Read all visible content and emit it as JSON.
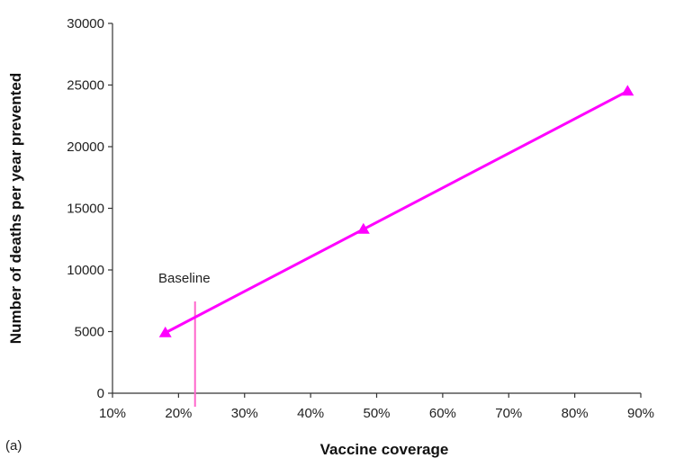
{
  "chart_data": {
    "type": "line",
    "xlabel": "Vaccine coverage",
    "ylabel": "Number of deaths per year prevented",
    "xlim": [
      10,
      90
    ],
    "ylim": [
      0,
      30000
    ],
    "x_ticks": [
      "10%",
      "20%",
      "30%",
      "40%",
      "50%",
      "60%",
      "70%",
      "80%",
      "90%"
    ],
    "y_ticks": [
      "0",
      "5000",
      "10000",
      "15000",
      "20000",
      "25000",
      "30000"
    ],
    "series": [
      {
        "points": [
          {
            "x": 18,
            "y": 4900
          },
          {
            "x": 48,
            "y": 13300
          },
          {
            "x": 88,
            "y": 24500
          }
        ]
      }
    ],
    "annotations": {
      "baseline_label": "Baseline",
      "baseline_x": 22.5,
      "panel_label": "(a)"
    },
    "colors": {
      "series": "#ff00ff",
      "baseline": "#ff66cc",
      "axis": "#333333"
    },
    "grid": false
  }
}
